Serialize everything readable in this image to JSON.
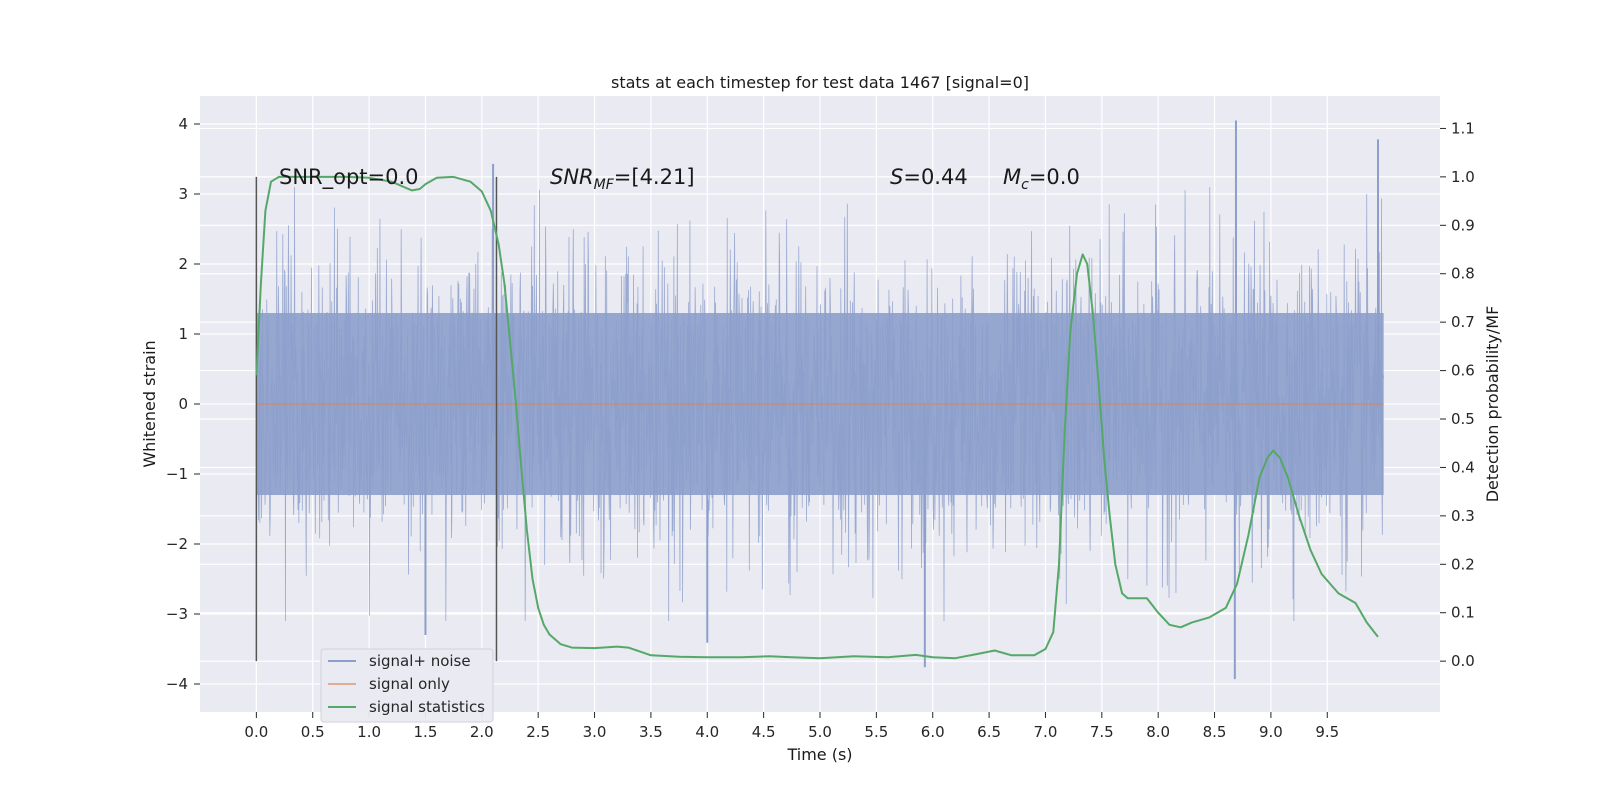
{
  "chart_data": {
    "type": "line",
    "title": "stats at each timestep for test data 1467 [signal=0]",
    "xlabel": "Time (s)",
    "ylabel": "Whitened strain",
    "y2label": "Detection probability/MF",
    "xlim": [
      -0.5,
      10.5
    ],
    "ylim": [
      -4.4,
      4.4
    ],
    "y2lim": [
      -0.105,
      1.167
    ],
    "x_ticks": [
      "0.0",
      "0.5",
      "1.0",
      "1.5",
      "2.0",
      "2.5",
      "3.0",
      "3.5",
      "4.0",
      "4.5",
      "5.0",
      "5.5",
      "6.0",
      "6.5",
      "7.0",
      "7.5",
      "8.0",
      "8.5",
      "9.0",
      "9.5"
    ],
    "y_ticks": [
      "4",
      "3",
      "2",
      "1",
      "0",
      "−1",
      "−2",
      "−3",
      "−4"
    ],
    "y2_ticks": [
      "1.1",
      "1.0",
      "0.9",
      "0.8",
      "0.7",
      "0.6",
      "0.5",
      "0.4",
      "0.3",
      "0.2",
      "0.1",
      "0.0"
    ],
    "grid": true,
    "legend_position": "lower-left",
    "vertical_markers": [
      0.0,
      2.13
    ],
    "annotations": [
      {
        "text": "SNR_opt=0.0"
      },
      {
        "base": "SNR",
        "sub": "MF",
        "tail": "=[4.21]"
      },
      {
        "base": "S",
        "sub": "",
        "tail": "=0.44"
      },
      {
        "base": "M",
        "sub": "c",
        "tail": "=0.0"
      }
    ],
    "series": [
      {
        "name": "signal+ noise",
        "color": "#8c9fcb",
        "x_range": [
          0.0,
          10.0
        ],
        "note_values": "dense whitened noise",
        "core_band": [
          -1.3,
          1.3
        ],
        "peaks": [
          {
            "x": 8.69,
            "y": 4.05
          },
          {
            "x": 9.95,
            "y": 3.78
          },
          {
            "x": 2.1,
            "y": 3.43
          },
          {
            "x": 8.68,
            "y": -3.93
          },
          {
            "x": 5.93,
            "y": -3.76
          },
          {
            "x": 4.0,
            "y": -3.41
          },
          {
            "x": 1.5,
            "y": -3.3
          }
        ]
      },
      {
        "name": "signal only",
        "color": "#dd8452",
        "x": [
          0.0,
          10.0
        ],
        "y": [
          0.0,
          0.0
        ]
      },
      {
        "name": "signal statistics",
        "color": "#55a868",
        "x": [
          0.0,
          0.04,
          0.08,
          0.13,
          0.2,
          0.3,
          0.5,
          0.8,
          1.0,
          1.2,
          1.3,
          1.38,
          1.45,
          1.5,
          1.6,
          1.75,
          1.9,
          2.0,
          2.08,
          2.15,
          2.2,
          2.25,
          2.3,
          2.35,
          2.4,
          2.45,
          2.5,
          2.55,
          2.6,
          2.7,
          2.8,
          3.0,
          3.2,
          3.3,
          3.5,
          3.75,
          4.0,
          4.3,
          4.55,
          4.75,
          5.0,
          5.3,
          5.6,
          5.85,
          6.0,
          6.2,
          6.4,
          6.55,
          6.7,
          6.9,
          7.0,
          7.07,
          7.12,
          7.17,
          7.22,
          7.28,
          7.33,
          7.37,
          7.42,
          7.47,
          7.52,
          7.57,
          7.62,
          7.68,
          7.73,
          7.8,
          7.9,
          8.0,
          8.1,
          8.2,
          8.3,
          8.45,
          8.6,
          8.7,
          8.8,
          8.9,
          8.97,
          9.02,
          9.08,
          9.15,
          9.25,
          9.35,
          9.45,
          9.6,
          9.75,
          9.85,
          9.95
        ],
        "y": [
          0.59,
          0.78,
          0.93,
          0.99,
          1.0,
          1.0,
          1.0,
          1.0,
          0.998,
          0.99,
          0.98,
          0.972,
          0.975,
          0.985,
          0.998,
          1.0,
          0.99,
          0.97,
          0.93,
          0.86,
          0.78,
          0.66,
          0.54,
          0.4,
          0.27,
          0.17,
          0.11,
          0.075,
          0.055,
          0.035,
          0.028,
          0.027,
          0.03,
          0.028,
          0.012,
          0.009,
          0.008,
          0.008,
          0.01,
          0.008,
          0.006,
          0.01,
          0.008,
          0.013,
          0.008,
          0.006,
          0.015,
          0.022,
          0.012,
          0.012,
          0.025,
          0.06,
          0.2,
          0.47,
          0.68,
          0.8,
          0.84,
          0.82,
          0.72,
          0.58,
          0.42,
          0.3,
          0.2,
          0.14,
          0.13,
          0.13,
          0.13,
          0.1,
          0.075,
          0.07,
          0.08,
          0.09,
          0.11,
          0.16,
          0.26,
          0.38,
          0.42,
          0.435,
          0.42,
          0.38,
          0.3,
          0.23,
          0.18,
          0.14,
          0.12,
          0.08,
          0.05
        ]
      }
    ]
  }
}
